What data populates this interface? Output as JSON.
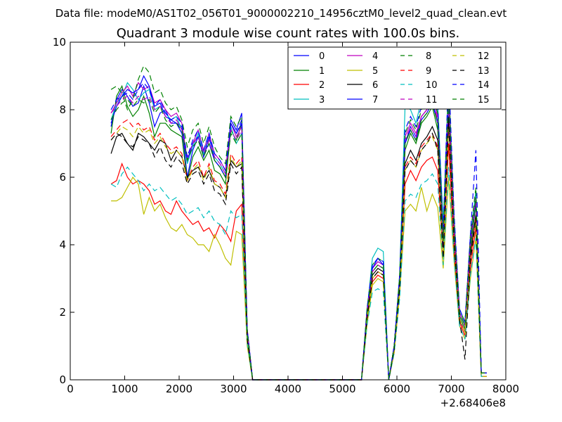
{
  "suptitle": "Data file: modeM0/AS1T02_056T01_9000002210_14956cztM0_level2_quad_clean.evt",
  "chart_data": {
    "type": "line",
    "title": "Quadrant 3 module wise count rates with 100.0s bins.",
    "xlabel": "",
    "ylabel": "",
    "x_offset_label": "+2.68406e8",
    "xlim": [
      0,
      8000
    ],
    "ylim": [
      0,
      10
    ],
    "x_ticks": [
      "0",
      "1000",
      "2000",
      "3000",
      "4000",
      "5000",
      "6000",
      "7000",
      "8000"
    ],
    "y_ticks": [
      "0",
      "2",
      "4",
      "6",
      "8",
      "10"
    ],
    "legend_position": "upper-right",
    "x": [
      750,
      850,
      950,
      1050,
      1150,
      1250,
      1350,
      1450,
      1550,
      1650,
      1750,
      1850,
      1950,
      2050,
      2150,
      2250,
      2350,
      2450,
      2550,
      2650,
      2750,
      2850,
      2950,
      3050,
      3150,
      3250,
      3350,
      3450,
      3550,
      5350,
      5450,
      5550,
      5650,
      5750,
      5850,
      5950,
      6050,
      6150,
      6250,
      6350,
      6450,
      6550,
      6650,
      6750,
      6850,
      6950,
      7050,
      7150,
      7250,
      7350,
      7450,
      7550,
      7650
    ],
    "series": [
      {
        "name": "0",
        "color": "#0000ff",
        "dash": "",
        "values": [
          7.5,
          8.3,
          8.6,
          8.4,
          8.1,
          8.2,
          8.7,
          8.2,
          7.5,
          7.9,
          8.0,
          7.6,
          7.6,
          7.5,
          6.0,
          6.8,
          7.2,
          6.7,
          7.0,
          6.5,
          6.3,
          6.0,
          7.7,
          7.4,
          7.9,
          1.5,
          0.0,
          0.0,
          0.0,
          0.0,
          2.0,
          3.3,
          3.5,
          3.4,
          0.0,
          1.0,
          3.0,
          7.0,
          7.5,
          7.2,
          7.8,
          8.0,
          8.3,
          7.6,
          4.0,
          8.4,
          4.5,
          2.0,
          1.6,
          4.0,
          5.3,
          0.2,
          0.2
        ]
      },
      {
        "name": "1",
        "color": "#008000",
        "dash": "",
        "values": [
          7.3,
          8.4,
          8.7,
          8.1,
          7.8,
          8.0,
          8.4,
          7.9,
          7.2,
          7.6,
          7.6,
          7.4,
          7.3,
          7.2,
          5.9,
          6.6,
          6.9,
          6.5,
          6.8,
          6.2,
          6.1,
          5.8,
          7.4,
          7.1,
          7.6,
          1.4,
          0.0,
          0.0,
          0.0,
          0.0,
          1.9,
          3.2,
          3.4,
          3.3,
          0.0,
          0.9,
          2.9,
          6.8,
          7.3,
          7.0,
          7.6,
          7.8,
          8.1,
          7.4,
          3.9,
          8.2,
          4.4,
          1.9,
          1.5,
          3.9,
          5.2,
          0.2,
          0.2
        ]
      },
      {
        "name": "2",
        "color": "#ff0000",
        "dash": "",
        "values": [
          5.8,
          5.9,
          6.4,
          6.0,
          5.8,
          5.9,
          5.8,
          5.6,
          5.2,
          5.3,
          5.0,
          4.9,
          5.3,
          5.0,
          4.8,
          4.6,
          4.7,
          4.4,
          4.5,
          4.2,
          4.6,
          4.4,
          4.1,
          5.0,
          5.2,
          1.1,
          0.0,
          0.0,
          0.0,
          0.0,
          1.7,
          2.9,
          3.1,
          3.0,
          0.0,
          0.8,
          2.6,
          5.8,
          6.2,
          5.9,
          6.3,
          6.5,
          6.6,
          6.2,
          3.6,
          7.0,
          3.8,
          1.7,
          1.3,
          3.3,
          4.5,
          0.1,
          0.1
        ]
      },
      {
        "name": "3",
        "color": "#00bfbf",
        "dash": "",
        "values": [
          7.7,
          8.2,
          8.4,
          8.8,
          8.6,
          8.3,
          8.5,
          8.6,
          8.0,
          8.1,
          7.9,
          7.7,
          7.8,
          7.4,
          6.4,
          6.9,
          7.3,
          6.7,
          7.2,
          6.6,
          6.4,
          6.1,
          7.5,
          7.0,
          7.3,
          1.4,
          0.0,
          0.0,
          0.0,
          0.0,
          2.0,
          3.6,
          3.9,
          3.8,
          0.0,
          1.0,
          3.1,
          8.1,
          8.0,
          7.6,
          8.3,
          8.6,
          8.8,
          8.2,
          4.6,
          8.9,
          4.6,
          2.1,
          1.7,
          4.2,
          5.6,
          0.2,
          0.2
        ]
      },
      {
        "name": "4",
        "color": "#bf00bf",
        "dash": "",
        "values": [
          7.9,
          8.2,
          8.5,
          8.7,
          8.4,
          8.8,
          8.6,
          8.7,
          8.2,
          8.3,
          8.0,
          7.8,
          7.9,
          7.6,
          6.5,
          7.0,
          7.4,
          6.8,
          7.3,
          6.7,
          6.5,
          6.2,
          7.6,
          7.2,
          7.5,
          1.5,
          0.0,
          0.0,
          0.0,
          0.0,
          2.0,
          3.3,
          3.5,
          3.4,
          0.0,
          1.0,
          3.0,
          7.2,
          7.6,
          7.3,
          7.8,
          8.0,
          8.4,
          7.8,
          4.2,
          8.5,
          4.6,
          2.0,
          1.6,
          4.1,
          5.4,
          0.2,
          0.2
        ]
      },
      {
        "name": "5",
        "color": "#bfbf00",
        "dash": "",
        "values": [
          5.3,
          5.3,
          5.4,
          5.7,
          6.0,
          5.8,
          4.9,
          5.4,
          5.0,
          5.2,
          4.8,
          4.5,
          4.4,
          4.6,
          4.3,
          4.2,
          4.0,
          4.0,
          3.8,
          4.3,
          4.0,
          3.6,
          3.4,
          4.4,
          4.3,
          1.0,
          0.0,
          0.0,
          0.0,
          0.0,
          1.6,
          2.8,
          3.0,
          2.9,
          0.0,
          0.8,
          2.5,
          5.0,
          5.2,
          5.0,
          5.7,
          5.0,
          5.5,
          5.1,
          3.3,
          6.0,
          3.5,
          1.6,
          1.2,
          3.0,
          4.2,
          0.1,
          0.1
        ]
      },
      {
        "name": "6",
        "color": "#000000",
        "dash": "",
        "values": [
          6.7,
          7.2,
          7.3,
          7.0,
          6.8,
          7.3,
          7.2,
          7.0,
          6.8,
          7.1,
          7.0,
          6.5,
          6.8,
          6.6,
          6.0,
          6.2,
          6.3,
          6.0,
          6.2,
          5.8,
          5.7,
          5.4,
          6.5,
          6.3,
          6.4,
          1.3,
          0.0,
          0.0,
          0.0,
          0.0,
          1.9,
          3.1,
          3.3,
          3.2,
          0.0,
          0.9,
          2.8,
          6.4,
          6.8,
          6.5,
          7.0,
          7.2,
          7.5,
          7.1,
          3.8,
          7.8,
          4.2,
          1.8,
          1.4,
          3.7,
          4.9,
          0.2,
          0.2
        ]
      },
      {
        "name": "7",
        "color": "#0000ff",
        "dash": "",
        "values": [
          7.6,
          8.1,
          8.4,
          8.6,
          8.5,
          8.6,
          9.0,
          8.7,
          8.1,
          8.2,
          7.8,
          7.7,
          7.6,
          7.3,
          6.5,
          7.0,
          7.2,
          6.6,
          7.2,
          6.5,
          6.3,
          6.0,
          7.6,
          7.3,
          7.6,
          1.4,
          0.0,
          0.0,
          0.0,
          0.0,
          2.0,
          3.3,
          3.6,
          3.4,
          0.0,
          1.0,
          3.0,
          7.0,
          7.4,
          7.1,
          7.7,
          7.9,
          8.2,
          7.6,
          4.0,
          8.3,
          4.5,
          2.0,
          1.6,
          4.0,
          5.3,
          0.2,
          0.2
        ]
      },
      {
        "name": "8",
        "color": "#008000",
        "dash": "8,5",
        "values": [
          8.6,
          8.7,
          8.5,
          8.0,
          8.3,
          8.9,
          9.3,
          9.1,
          8.5,
          8.6,
          8.2,
          8.0,
          8.1,
          7.7,
          6.9,
          7.4,
          7.6,
          7.0,
          7.5,
          6.9,
          6.6,
          6.4,
          7.8,
          7.5,
          7.8,
          1.5,
          0.0,
          0.0,
          0.0,
          0.0,
          2.1,
          3.4,
          3.6,
          3.5,
          0.0,
          1.0,
          3.1,
          7.3,
          7.7,
          7.4,
          8.0,
          8.2,
          8.5,
          7.9,
          4.3,
          8.8,
          4.8,
          2.1,
          1.7,
          4.3,
          5.7,
          0.2,
          0.2
        ]
      },
      {
        "name": "9",
        "color": "#ff0000",
        "dash": "8,5",
        "values": [
          7.2,
          7.4,
          7.6,
          7.7,
          7.5,
          7.6,
          7.4,
          7.5,
          7.1,
          7.3,
          7.0,
          6.8,
          6.9,
          6.7,
          5.9,
          6.3,
          6.5,
          6.0,
          6.4,
          5.9,
          5.8,
          5.5,
          6.7,
          6.4,
          6.6,
          1.3,
          0.0,
          0.0,
          0.0,
          0.0,
          1.8,
          3.0,
          3.2,
          3.1,
          0.0,
          0.9,
          2.7,
          6.3,
          6.6,
          6.4,
          6.9,
          7.1,
          7.3,
          6.9,
          3.7,
          7.6,
          4.1,
          1.8,
          1.4,
          3.6,
          4.8,
          0.1,
          0.1
        ]
      },
      {
        "name": "10",
        "color": "#00bfbf",
        "dash": "8,5",
        "values": [
          5.8,
          5.7,
          6.1,
          6.3,
          6.1,
          5.9,
          5.6,
          5.8,
          5.6,
          5.7,
          5.5,
          5.3,
          5.4,
          5.2,
          4.9,
          5.0,
          5.1,
          4.8,
          5.0,
          4.7,
          4.6,
          4.3,
          5.0,
          4.8,
          4.9,
          1.1,
          0.0,
          0.0,
          0.0,
          0.0,
          1.6,
          2.6,
          2.7,
          2.6,
          0.0,
          0.8,
          2.4,
          5.3,
          5.5,
          5.4,
          5.8,
          5.9,
          6.1,
          5.8,
          3.4,
          6.3,
          3.6,
          1.6,
          1.2,
          3.1,
          4.2,
          0.1,
          0.1
        ]
      },
      {
        "name": "11",
        "color": "#bf00bf",
        "dash": "8,5",
        "values": [
          7.9,
          8.1,
          8.3,
          8.4,
          8.2,
          8.4,
          8.3,
          8.4,
          8.0,
          8.1,
          7.8,
          7.6,
          7.7,
          7.4,
          6.6,
          7.0,
          7.2,
          6.7,
          7.1,
          6.6,
          6.4,
          6.1,
          7.4,
          7.1,
          7.4,
          1.4,
          0.0,
          0.0,
          0.0,
          0.0,
          2.0,
          3.2,
          3.4,
          3.3,
          0.0,
          1.0,
          3.0,
          7.1,
          7.5,
          7.2,
          7.8,
          8.0,
          8.3,
          7.7,
          4.1,
          8.4,
          4.5,
          2.0,
          1.6,
          4.1,
          5.4,
          0.2,
          0.2
        ]
      },
      {
        "name": "12",
        "color": "#bfbf00",
        "dash": "8,5",
        "values": [
          7.1,
          7.3,
          7.5,
          7.4,
          7.2,
          7.5,
          7.3,
          7.4,
          7.0,
          7.2,
          6.9,
          6.7,
          6.8,
          6.6,
          5.9,
          6.2,
          6.4,
          5.9,
          6.3,
          5.8,
          5.7,
          5.4,
          6.6,
          6.3,
          6.5,
          1.3,
          0.0,
          0.0,
          0.0,
          0.0,
          1.8,
          3.0,
          3.2,
          3.1,
          0.0,
          0.9,
          2.7,
          6.2,
          6.5,
          6.3,
          6.8,
          7.0,
          7.2,
          6.8,
          3.6,
          7.5,
          4.0,
          1.8,
          1.4,
          3.5,
          4.7,
          0.1,
          0.1
        ]
      },
      {
        "name": "13",
        "color": "#000000",
        "dash": "8,5",
        "values": [
          7.1,
          7.3,
          7.2,
          7.0,
          6.9,
          7.2,
          7.1,
          7.0,
          6.6,
          6.9,
          6.5,
          6.3,
          6.6,
          6.4,
          5.8,
          6.1,
          6.2,
          5.8,
          6.1,
          5.6,
          5.5,
          5.2,
          6.4,
          6.1,
          6.3,
          1.2,
          0.0,
          0.0,
          0.0,
          0.0,
          1.8,
          3.0,
          3.2,
          3.1,
          0.0,
          0.9,
          2.7,
          6.2,
          6.5,
          6.3,
          6.8,
          7.0,
          7.3,
          6.8,
          3.6,
          7.6,
          4.0,
          1.8,
          0.6,
          3.5,
          4.8,
          0.2,
          0.2
        ]
      },
      {
        "name": "14",
        "color": "#0000ff",
        "dash": "8,5",
        "values": [
          8.0,
          8.3,
          8.4,
          8.5,
          8.3,
          8.6,
          8.8,
          8.6,
          8.1,
          8.3,
          7.9,
          7.7,
          7.8,
          7.6,
          6.6,
          7.1,
          7.4,
          6.8,
          7.3,
          6.7,
          6.5,
          6.2,
          7.6,
          7.3,
          7.7,
          1.5,
          0.0,
          0.0,
          0.0,
          0.0,
          2.1,
          3.4,
          3.6,
          3.5,
          0.0,
          1.0,
          3.1,
          7.4,
          7.8,
          7.5,
          8.1,
          8.4,
          8.8,
          8.1,
          4.4,
          9.2,
          4.9,
          2.1,
          1.7,
          4.3,
          6.8,
          0.2,
          0.2
        ]
      },
      {
        "name": "15",
        "color": "#008000",
        "dash": "8,5",
        "values": [
          7.7,
          8.0,
          8.2,
          8.3,
          8.1,
          8.3,
          8.2,
          8.3,
          7.9,
          8.1,
          7.7,
          7.5,
          7.6,
          7.4,
          6.5,
          6.9,
          7.1,
          6.6,
          7.0,
          6.5,
          6.3,
          6.0,
          7.3,
          7.0,
          7.3,
          1.4,
          0.0,
          0.0,
          0.0,
          0.0,
          2.0,
          3.2,
          3.4,
          3.3,
          0.0,
          1.0,
          3.0,
          7.0,
          7.4,
          7.1,
          7.7,
          7.9,
          8.2,
          7.6,
          4.1,
          8.5,
          4.5,
          2.0,
          1.6,
          4.0,
          5.4,
          0.2,
          0.2
        ]
      }
    ]
  }
}
